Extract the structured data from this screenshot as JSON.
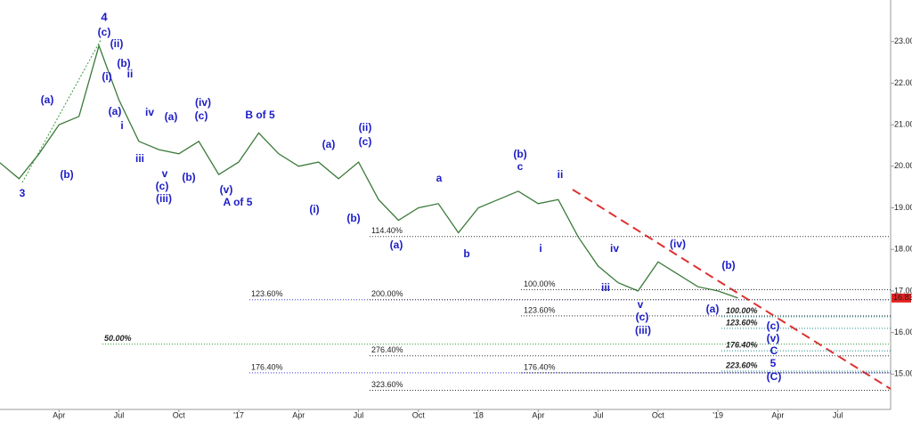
{
  "chart_data": {
    "type": "line",
    "categories": [
      null,
      null,
      null,
      "Apr",
      null,
      null,
      "Jul",
      null,
      null,
      "Oct",
      null,
      null,
      "'17",
      null,
      null,
      "Apr",
      null,
      null,
      "Jul",
      null,
      null,
      "Oct",
      null,
      null,
      "'18",
      null,
      null,
      "Apr",
      null,
      null,
      "Jul",
      null,
      null,
      "Oct",
      null,
      null,
      "'19",
      null,
      null,
      "Apr",
      null,
      null,
      "Jul",
      null,
      null
    ],
    "series": [
      {
        "color": "#3a7a3a",
        "values": [
          20.1,
          19.7,
          20.3,
          21.0,
          21.2,
          22.9,
          21.6,
          20.6,
          20.4,
          20.3,
          20.6,
          19.8,
          20.1,
          20.8,
          20.3,
          20.0,
          20.1,
          19.7,
          20.1,
          19.2,
          18.7,
          19.0,
          19.1,
          18.4,
          19.0,
          19.2,
          19.4,
          19.1,
          19.2,
          18.3,
          17.6,
          17.2,
          17.0,
          17.7,
          17.4,
          17.1,
          17.0,
          16.83,
          null,
          null,
          null,
          null,
          null,
          null,
          null
        ]
      }
    ],
    "ylim": [
      14.15,
      24.0
    ],
    "yticks": [
      {
        "value": 15,
        "label": "15.00"
      },
      {
        "value": 16,
        "label": "16.00"
      },
      {
        "value": 17,
        "label": "17.00"
      },
      {
        "value": 18,
        "label": "18.00"
      },
      {
        "value": 19,
        "label": "19.00"
      },
      {
        "value": 20,
        "label": "20.00"
      },
      {
        "value": 21,
        "label": "21.00"
      },
      {
        "value": 22,
        "label": "22.00"
      },
      {
        "value": 23,
        "label": "23.00"
      }
    ],
    "last_price": {
      "value": 16.83,
      "label": "16.83",
      "color": "#e02020"
    },
    "levels": [
      {
        "label": "114.40%",
        "price": 18.31,
        "color": "#333333"
      },
      {
        "label": "123.60%",
        "price": 16.79,
        "color": "#3a3ad0"
      },
      {
        "label": "200.00%",
        "price": 16.79,
        "color": "#333333"
      },
      {
        "label": "100.00%",
        "price": 17.03,
        "color": "#333333"
      },
      {
        "label": "123.60%",
        "price": 16.4,
        "color": "#333333"
      },
      {
        "label": "50.00%",
        "price": 15.72,
        "color": "#2e9a2e"
      },
      {
        "label": "276.40%",
        "price": 15.44,
        "color": "#333333"
      },
      {
        "label": "176.40%",
        "price": 15.03,
        "color": "#3a3ad0"
      },
      {
        "label": "176.40%",
        "price": 15.03,
        "color": "#333333"
      },
      {
        "label": "323.60%",
        "price": 14.61,
        "color": "#333333"
      },
      {
        "label": "100.00%",
        "price": 16.38,
        "color": "#1a8a8a"
      },
      {
        "label": "123.60%",
        "price": 16.1,
        "color": "#1a8a8a"
      },
      {
        "label": "176.40%",
        "price": 15.56,
        "color": "#1a8a8a"
      },
      {
        "label": "223.60%",
        "price": 15.07,
        "color": "#1a8a8a"
      }
    ],
    "annotations": [
      "4",
      "(c)",
      "(ii)",
      "(i)",
      "(b)",
      "ii",
      "(a)",
      "i",
      "(a)",
      "(b)",
      "3",
      "iii",
      "iv",
      "(a)",
      "v",
      "(c)",
      "(iii)",
      "(iv)",
      "(c)",
      "(b)",
      "(v)",
      "B of 5",
      "A of 5",
      "(a)",
      "(i)",
      "(ii)",
      "(c)",
      "(b)",
      "(a)",
      "a",
      "b",
      "(b)",
      "c",
      "ii",
      "i",
      "iv",
      "iii",
      "v",
      "(c)",
      "(iii)",
      "(iv)",
      "(b)",
      "(a)",
      "(c)",
      "(v)",
      "C",
      "5",
      "(C)"
    ]
  }
}
